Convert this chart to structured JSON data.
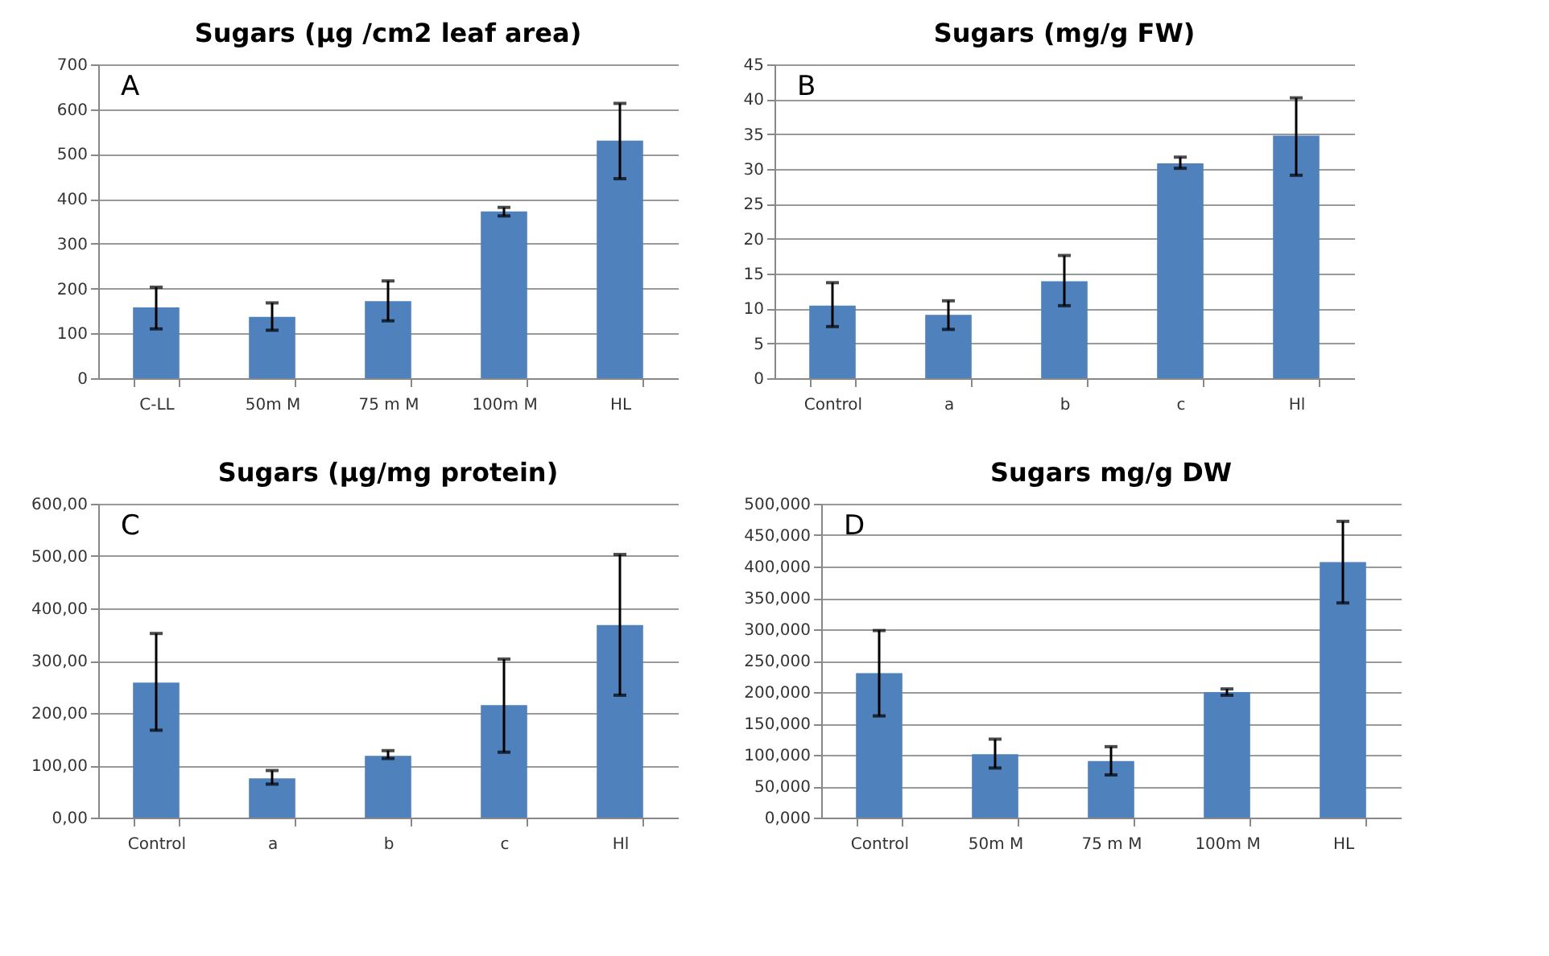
{
  "chart_data": [
    {
      "type": "bar",
      "title": "Sugars (µg /cm2 leaf area)",
      "annotations": [
        "A"
      ],
      "categories": [
        "C-LL",
        "50m M",
        "75 m M",
        "100m M",
        "HL"
      ],
      "values": [
        158,
        137,
        172,
        372,
        530
      ],
      "errors": [
        [
          110,
          203
        ],
        [
          107,
          168
        ],
        [
          128,
          217
        ],
        [
          362,
          381
        ],
        [
          445,
          613
        ]
      ],
      "color": "#4f81bd",
      "ylim": [
        0,
        700
      ],
      "yticks": [
        0,
        100,
        200,
        300,
        400,
        500,
        600,
        700
      ],
      "grid": "y"
    },
    {
      "type": "bar",
      "title": "Sugars (mg/g FW)",
      "annotations": [
        "B"
      ],
      "categories": [
        "Control",
        "a",
        "b",
        "c",
        "Hl"
      ],
      "values": [
        10.4,
        9.1,
        13.9,
        30.8,
        34.8
      ],
      "errors": [
        [
          7.4,
          13.7
        ],
        [
          7,
          11.1
        ],
        [
          10.4,
          17.6
        ],
        [
          30.1,
          31.7
        ],
        [
          29.1,
          40.2
        ]
      ],
      "color": "#4f81bd",
      "ylim": [
        0,
        45
      ],
      "yticks": [
        0,
        5,
        10,
        15,
        20,
        25,
        30,
        35,
        40,
        45
      ],
      "grid": "y"
    },
    {
      "type": "bar",
      "title": "Sugars (µg/mg protein)",
      "annotations": [
        "C"
      ],
      "categories": [
        "Control",
        "a",
        "b",
        "c",
        "Hl"
      ],
      "values": [
        258,
        75,
        118,
        215,
        368
      ],
      "errors": [
        [
          167,
          352
        ],
        [
          64,
          90
        ],
        [
          113,
          128
        ],
        [
          125,
          303
        ],
        [
          234,
          503
        ]
      ],
      "color": "#4f81bd",
      "ylim": [
        0,
        600
      ],
      "yticks": [
        {
          "value": 0,
          "label": "0,00"
        },
        {
          "value": 100,
          "label": "100,00"
        },
        {
          "value": 200,
          "label": "200,00"
        },
        {
          "value": 300,
          "label": "300,00"
        },
        {
          "value": 400,
          "label": "400,00"
        },
        {
          "value": 500,
          "label": "500,00"
        },
        {
          "value": 600,
          "label": "600,00"
        }
      ],
      "grid": "y"
    },
    {
      "type": "bar",
      "title": "Sugars mg/g DW",
      "annotations": [
        "D"
      ],
      "categories": [
        "Control",
        "50m M",
        "75 m M",
        "100m M",
        "HL"
      ],
      "values": [
        230,
        101,
        90,
        200,
        407
      ],
      "errors": [
        [
          162,
          298
        ],
        [
          79,
          125
        ],
        [
          68,
          113
        ],
        [
          195,
          205
        ],
        [
          342,
          472
        ]
      ],
      "color": "#4f81bd",
      "ylim": [
        0,
        500
      ],
      "yticks": [
        {
          "value": 0,
          "label": "0,000"
        },
        {
          "value": 50,
          "label": "50,000"
        },
        {
          "value": 100,
          "label": "100,000"
        },
        {
          "value": 150,
          "label": "150,000"
        },
        {
          "value": 200,
          "label": "200,000"
        },
        {
          "value": 250,
          "label": "250,000"
        },
        {
          "value": 300,
          "label": "300,000"
        },
        {
          "value": 350,
          "label": "350,000"
        },
        {
          "value": 400,
          "label": "400,000"
        },
        {
          "value": 450,
          "label": "450,000"
        },
        {
          "value": 500,
          "label": "500,000"
        }
      ],
      "grid": "y"
    }
  ]
}
